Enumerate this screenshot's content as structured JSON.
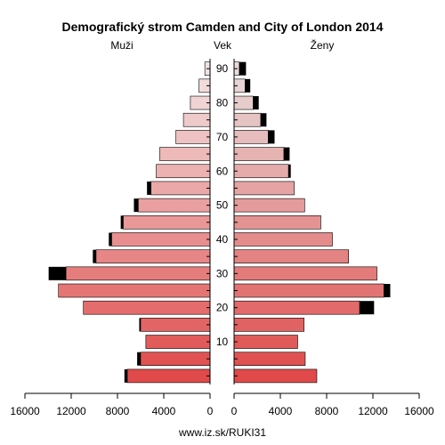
{
  "chart_data": {
    "type": "bar",
    "title": "Demografický strom Camden and City of London 2014",
    "left_header": "Muži",
    "center_header": "Vek",
    "right_header": "Ženy",
    "source": "www.iz.sk/RUKI31",
    "age_groups": [
      "0-4",
      "5-9",
      "10-14",
      "15-19",
      "20-24",
      "25-29",
      "30-34",
      "35-39",
      "40-44",
      "45-49",
      "50-54",
      "55-59",
      "60-64",
      "65-69",
      "70-74",
      "75-79",
      "80-84",
      "85-89",
      "90+"
    ],
    "age_ticks": [
      10,
      20,
      30,
      40,
      50,
      60,
      70,
      80,
      90
    ],
    "value_ticks": [
      "16000",
      "12000",
      "8000",
      "4000",
      "0",
      "4000",
      "8000",
      "12000",
      "16000"
    ],
    "xlim": [
      0,
      16000
    ],
    "men": {
      "base": [
        7150,
        6000,
        5550,
        6000,
        10950,
        13100,
        12450,
        9850,
        8500,
        7500,
        6200,
        5100,
        4650,
        4350,
        2950,
        2300,
        1700,
        950,
        450
      ],
      "excess": [
        250,
        300,
        0,
        120,
        0,
        0,
        1500,
        280,
        250,
        220,
        380,
        350,
        0,
        0,
        0,
        0,
        0,
        0,
        0
      ]
    },
    "women": {
      "base": [
        7150,
        6150,
        5500,
        6050,
        10850,
        12950,
        12350,
        9900,
        8500,
        7500,
        6100,
        5200,
        4700,
        4300,
        2950,
        2300,
        1650,
        950,
        450
      ],
      "excess": [
        0,
        0,
        0,
        0,
        1250,
        550,
        0,
        0,
        0,
        0,
        0,
        0,
        200,
        500,
        550,
        500,
        480,
        450,
        580
      ]
    },
    "colors": {
      "excess": "#000000",
      "stroke": "#000000",
      "young_bar": "#e04a4a",
      "old_male_bar": "#f2e4e4",
      "old_female_bar": "#e8dcdc"
    }
  }
}
